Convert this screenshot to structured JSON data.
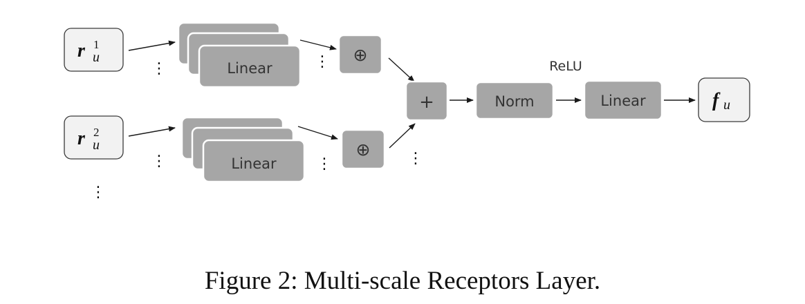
{
  "diagram": {
    "inputs": [
      {
        "symbol": "r",
        "sub": "u",
        "sup": "1"
      },
      {
        "symbol": "r",
        "sub": "u",
        "sup": "2"
      }
    ],
    "linear_label": "Linear",
    "concat_symbol": "⊕",
    "add_symbol": "+",
    "norm_label": "Norm",
    "activation_label": "ReLU",
    "final_linear_label": "Linear",
    "output": {
      "symbol": "f",
      "sub": "u"
    },
    "ellipsis": "⋮"
  },
  "caption": "Figure 2: Multi-scale Receptors Layer."
}
